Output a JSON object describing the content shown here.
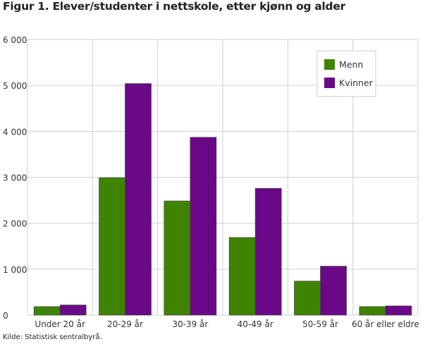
{
  "chart_data": {
    "type": "bar",
    "title": "Figur 1. Elever/studenter i nettskole, etter kjønn og alder",
    "source": "Kilde: Statistisk sentralbyrå.",
    "xlabel": "",
    "ylabel": "",
    "ylim": [
      0,
      6000
    ],
    "yticks": [
      0,
      1000,
      2000,
      3000,
      4000,
      5000,
      6000
    ],
    "ytick_labels": [
      "0",
      "1 000",
      "2 000",
      "3 000",
      "4 000",
      "5 000",
      "6 000"
    ],
    "grid": true,
    "legend_position": "top-right",
    "categories": [
      "Under 20 år",
      "20-29 år",
      "30-39 år",
      "40-49 år",
      "50-59 år",
      "60 år eller eldre"
    ],
    "series": [
      {
        "name": "Menn",
        "color": "#3f8400",
        "values": [
          185,
          2990,
          2485,
          1690,
          740,
          185
        ]
      },
      {
        "name": "Kvinner",
        "color": "#6a0888",
        "values": [
          220,
          5040,
          3870,
          2760,
          1065,
          200
        ]
      }
    ]
  }
}
